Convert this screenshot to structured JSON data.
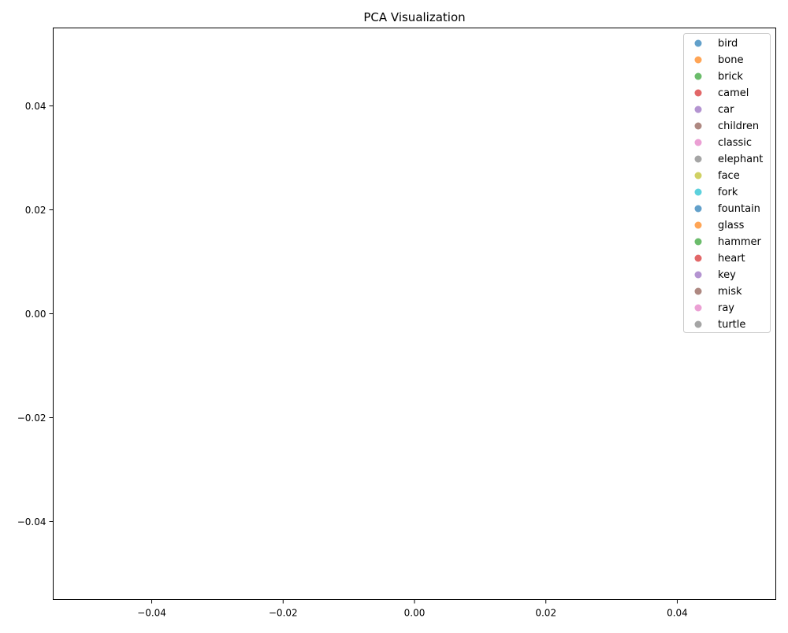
{
  "chart_data": {
    "type": "scatter",
    "title": "PCA Visualization",
    "xlabel": "",
    "ylabel": "",
    "xlim": [
      -0.055,
      0.055
    ],
    "ylim": [
      -0.055,
      0.055
    ],
    "x_ticks": [
      -0.04,
      -0.02,
      0.0,
      0.02,
      0.04
    ],
    "x_tick_labels": [
      "−0.04",
      "−0.02",
      "0.00",
      "0.02",
      "0.04"
    ],
    "y_ticks": [
      0.04,
      0.02,
      0.0,
      -0.02,
      -0.04
    ],
    "y_tick_labels": [
      "0.04",
      "0.02",
      "0.00",
      "−0.02",
      "−0.04"
    ],
    "grid": false,
    "legend_position": "top-right",
    "series": [
      {
        "name": "bird",
        "color": "#1f77b4",
        "points": []
      },
      {
        "name": "bone",
        "color": "#ff7f0e",
        "points": []
      },
      {
        "name": "brick",
        "color": "#2ca02c",
        "points": []
      },
      {
        "name": "camel",
        "color": "#d62728",
        "points": []
      },
      {
        "name": "car",
        "color": "#9467bd",
        "points": []
      },
      {
        "name": "children",
        "color": "#8c564b",
        "points": []
      },
      {
        "name": "classic",
        "color": "#e377c2",
        "points": []
      },
      {
        "name": "elephant",
        "color": "#7f7f7f",
        "points": []
      },
      {
        "name": "face",
        "color": "#bcbd22",
        "points": []
      },
      {
        "name": "fork",
        "color": "#17becf",
        "points": []
      },
      {
        "name": "fountain",
        "color": "#1f77b4",
        "points": []
      },
      {
        "name": "glass",
        "color": "#ff7f0e",
        "points": []
      },
      {
        "name": "hammer",
        "color": "#2ca02c",
        "points": []
      },
      {
        "name": "heart",
        "color": "#d62728",
        "points": []
      },
      {
        "name": "key",
        "color": "#9467bd",
        "points": []
      },
      {
        "name": "misk",
        "color": "#8c564b",
        "points": []
      },
      {
        "name": "ray",
        "color": "#e377c2",
        "points": []
      },
      {
        "name": "turtle",
        "color": "#7f7f7f",
        "points": []
      }
    ]
  }
}
